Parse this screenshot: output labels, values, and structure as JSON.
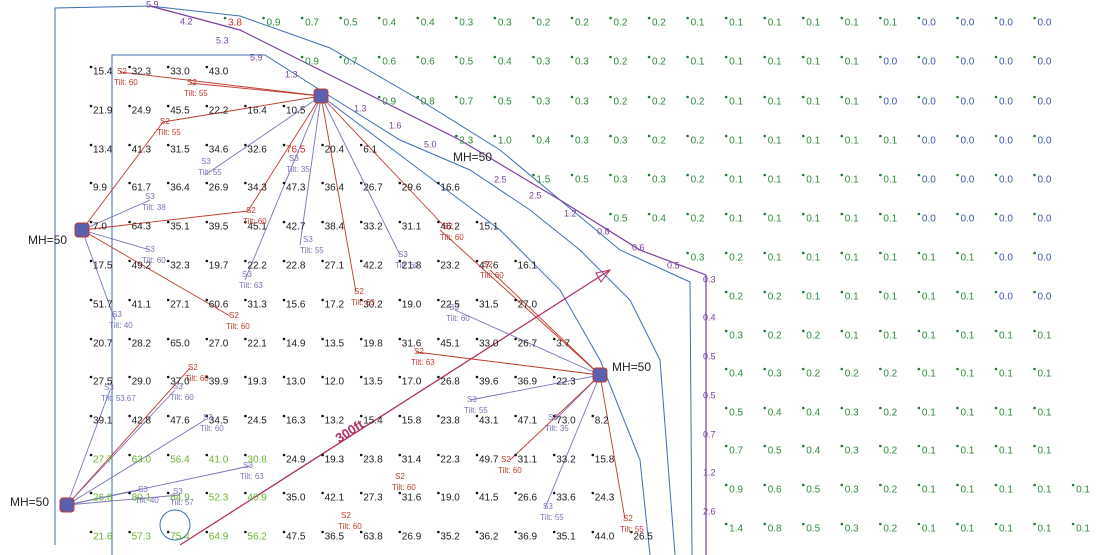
{
  "grid_a": {
    "color": "#1a1a1a",
    "rows": [
      [
        "15.4",
        "32.3",
        "33.0",
        "43.0"
      ],
      [
        "21.9",
        "24.9",
        "45.5",
        "22.2",
        "16.4",
        "10.5"
      ],
      [
        "13.4",
        "41.3",
        "31.5",
        "34.6",
        "32.6",
        "76.5",
        "20.4",
        "6.1"
      ],
      [
        "9.9",
        "61.7",
        "36.4",
        "26.9",
        "34.3",
        "47.3",
        "36.4",
        "26.7",
        "29.6",
        "16.6"
      ],
      [
        "7.0",
        "64.3",
        "35.1",
        "39.5",
        "45.1",
        "42.7",
        "38.4",
        "33.2",
        "31.1",
        "46.2",
        "15.1"
      ],
      [
        "17.5",
        "49.2",
        "32.3",
        "19.7",
        "22.2",
        "22.8",
        "27.1",
        "42.2",
        "21.8",
        "23.2",
        "47.6",
        "16.1"
      ],
      [
        "51.7",
        "41.1",
        "27.1",
        "60.6",
        "31.3",
        "15.6",
        "17.2",
        "30.2",
        "19.0",
        "22.5",
        "31.5",
        "27.0"
      ],
      [
        "20.7",
        "28.2",
        "65.0",
        "27.0",
        "22.1",
        "14.9",
        "13.5",
        "19.8",
        "31.6",
        "45.1",
        "33.0",
        "26.7",
        "3.7"
      ],
      [
        "27.5",
        "29.0",
        "37.0",
        "39.9",
        "19.3",
        "13.0",
        "12.0",
        "13.5",
        "17.0",
        "26.8",
        "39.6",
        "36.9",
        "22.3"
      ],
      [
        "39.1",
        "42.8",
        "47.6",
        "34.5",
        "24.5",
        "16.3",
        "13.2",
        "15.4",
        "15.8",
        "23.8",
        "43.1",
        "47.1",
        "73.0",
        "8.2"
      ],
      [
        "27.7",
        "63.0",
        "56.4",
        "41.0",
        "30.8",
        "24.9",
        "19.3",
        "23.8",
        "31.4",
        "22.3",
        "49.7",
        "31.1",
        "33.2",
        "15.8"
      ],
      [
        "26.8",
        "80.1",
        "64.9",
        "52.3",
        "40.9",
        "35.0",
        "42.1",
        "27.3",
        "31.6",
        "19.0",
        "41.5",
        "26.6",
        "33.6",
        "24.3"
      ],
      [
        "21.6",
        "57.3",
        "75.4",
        "64.9",
        "56.2",
        "47.5",
        "36.5",
        "63.8",
        "26.9",
        "35.2",
        "36.2",
        "36.9",
        "35.1",
        "44.0",
        "26.5"
      ]
    ],
    "colored_cells": [
      {
        "row": 2,
        "cols": [
          5
        ],
        "color": "#d0302a"
      },
      {
        "row": 10,
        "cols": [
          0,
          1,
          2,
          3,
          4
        ],
        "color": "#6ab42d"
      },
      {
        "row": 11,
        "cols": [
          0,
          1,
          2,
          3,
          4
        ],
        "color": "#6ab42d"
      },
      {
        "row": 12,
        "cols": [
          0,
          1,
          2,
          3,
          4
        ],
        "color": "#6ab42d"
      }
    ]
  },
  "grid_b": {
    "color": "#2e8b3a",
    "zero_color": "#3d55a8",
    "rows": [
      [
        "3.8",
        "0.9",
        "0.7",
        "0.5",
        "0.4",
        "0.4",
        "0.3",
        "0.3",
        "0.2",
        "0.2",
        "0.2",
        "0.2",
        "0.1",
        "0.1",
        "0.1",
        "0.1",
        "0.1",
        "0.1",
        "0.0",
        "0.0",
        "0.0",
        "0.0"
      ],
      [
        null,
        null,
        "0.9",
        "0.7",
        "0.6",
        "0.6",
        "0.5",
        "0.4",
        "0.3",
        "0.3",
        "0.2",
        "0.2",
        "0.1",
        "0.1",
        "0.1",
        "0.1",
        "0.1",
        "0.0",
        "0.0",
        "0.0",
        "0.0",
        "0.0"
      ],
      [
        null,
        null,
        null,
        null,
        "0.9",
        "0.8",
        "0.7",
        "0.5",
        "0.3",
        "0.3",
        "0.2",
        "0.2",
        "0.2",
        "0.1",
        "0.1",
        "0.1",
        "0.1",
        "0.0",
        "0.0",
        "0.0",
        "0.0",
        "0.0"
      ],
      [
        null,
        null,
        null,
        null,
        null,
        null,
        "2.3",
        "1.0",
        "0.4",
        "0.3",
        "0.3",
        "0.2",
        "0.2",
        "0.1",
        "0.1",
        "0.1",
        "0.1",
        "0.1",
        "0.0",
        "0.0",
        "0.0",
        "0.0"
      ],
      [
        null,
        null,
        null,
        null,
        null,
        null,
        null,
        null,
        "1.5",
        "0.5",
        "0.3",
        "0.3",
        "0.2",
        "0.1",
        "0.1",
        "0.1",
        "0.1",
        "0.1",
        "0.0",
        "0.0",
        "0.0",
        "0.0"
      ],
      [
        null,
        null,
        null,
        null,
        null,
        null,
        null,
        null,
        null,
        null,
        "0.5",
        "0.4",
        "0.2",
        "0.1",
        "0.1",
        "0.1",
        "0.1",
        "0.1",
        "0.0",
        "0.0",
        "0.0",
        "0.0"
      ],
      [
        null,
        null,
        null,
        null,
        null,
        null,
        null,
        null,
        null,
        null,
        null,
        null,
        "0.3",
        "0.2",
        "0.1",
        "0.1",
        "0.1",
        "0.1",
        "0.1",
        "0.1",
        "0.0",
        "0.0"
      ],
      [
        null,
        null,
        null,
        null,
        null,
        null,
        null,
        null,
        null,
        null,
        null,
        null,
        null,
        "0.2",
        "0.2",
        "0.1",
        "0.1",
        "0.1",
        "0.1",
        "0.1",
        "0.0",
        "0.0"
      ],
      [
        null,
        null,
        null,
        null,
        null,
        null,
        null,
        null,
        null,
        null,
        null,
        null,
        null,
        "0.3",
        "0.2",
        "0.2",
        "0.1",
        "0.1",
        "0.1",
        "0.1",
        "0.1",
        "0.1"
      ],
      [
        null,
        null,
        null,
        null,
        null,
        null,
        null,
        null,
        null,
        null,
        null,
        null,
        null,
        "0.4",
        "0.3",
        "0.2",
        "0.2",
        "0.2",
        "0.1",
        "0.1",
        "0.1",
        "0.1"
      ],
      [
        null,
        null,
        null,
        null,
        null,
        null,
        null,
        null,
        null,
        null,
        null,
        null,
        null,
        "0.5",
        "0.4",
        "0.4",
        "0.3",
        "0.2",
        "0.1",
        "0.1",
        "0.1",
        "0.1"
      ],
      [
        null,
        null,
        null,
        null,
        null,
        null,
        null,
        null,
        null,
        null,
        null,
        null,
        null,
        "0.7",
        "0.5",
        "0.4",
        "0.3",
        "0.2",
        "0.1",
        "0.1",
        "0.1",
        "0.1"
      ],
      [
        null,
        null,
        null,
        null,
        null,
        null,
        null,
        null,
        null,
        null,
        null,
        null,
        null,
        "0.9",
        "0.6",
        "0.5",
        "0.3",
        "0.2",
        "0.1",
        "0.1",
        "0.1",
        "0.1",
        "0.1"
      ],
      [
        null,
        null,
        null,
        null,
        null,
        null,
        null,
        null,
        null,
        null,
        null,
        null,
        null,
        "1.4",
        "0.8",
        "0.5",
        "0.3",
        "0.2",
        "0.1",
        "0.1",
        "0.1",
        "0.1",
        "0.1"
      ]
    ],
    "colored_cells": [
      {
        "row": 0,
        "cols": [
          0
        ],
        "color": "#d0302a"
      }
    ]
  },
  "perimeter": {
    "color": "#7a3fa0",
    "values": [
      "5.9",
      "4.2",
      "5.3",
      "5.9",
      "1.3",
      "1.3",
      "1.6",
      "5.0",
      "2.5",
      "2.5",
      "1.2",
      "0.8",
      "0.6",
      "0.5",
      "0.3",
      "0.4",
      "0.5",
      "0.5",
      "0.7",
      "1.2",
      "2.6"
    ]
  },
  "mounting_labels": [
    "MH=50",
    "MH=50",
    "MH=50",
    "MH=50"
  ],
  "dimension": "300ft",
  "aims": [
    {
      "model": "S2",
      "tilt": "Tilt: 60"
    },
    {
      "model": "S2",
      "tilt": "Tilt: 55"
    },
    {
      "model": "S2",
      "tilt": "Tilt: 55"
    },
    {
      "model": "S3",
      "tilt": "Tilt: 55"
    },
    {
      "model": "S3",
      "tilt": "Tilt: 35"
    },
    {
      "model": "S3",
      "tilt": "Tilt: 38"
    },
    {
      "model": "S2",
      "tilt": "Tilt: 60"
    },
    {
      "model": "S3",
      "tilt": "Tilt: 60"
    },
    {
      "model": "S3",
      "tilt": "Tilt: 55"
    },
    {
      "model": "S3",
      "tilt": "Tilt: 60"
    },
    {
      "model": "S2",
      "tilt": "Tilt: 60"
    },
    {
      "model": "S2",
      "tilt": "Tilt: 60"
    },
    {
      "model": "S3",
      "tilt": "Tilt: 63"
    },
    {
      "model": "S2",
      "tilt": "Tilt: 63"
    },
    {
      "model": "S3",
      "tilt": "Tilt: 60"
    },
    {
      "model": "S3",
      "tilt": "Tilt: 40"
    },
    {
      "model": "S2",
      "tilt": "Tilt: 60"
    },
    {
      "model": "S2",
      "tilt": "Tilt: 63"
    },
    {
      "model": "S2",
      "tilt": "Tilt: 60"
    },
    {
      "model": "S3",
      "tilt": "Tilt: 53.67"
    },
    {
      "model": "S3",
      "tilt": "Tilt: 60"
    },
    {
      "model": "S3",
      "tilt": "Tilt: 60"
    },
    {
      "model": "S3",
      "tilt": "Tilt: 55"
    },
    {
      "model": "S3",
      "tilt": "Tilt: 35"
    },
    {
      "model": "S3",
      "tilt": "Tilt: 63"
    },
    {
      "model": "S2",
      "tilt": "Tilt: 60"
    },
    {
      "model": "S2",
      "tilt": "Tilt: 60"
    },
    {
      "model": "S3",
      "tilt": "Tilt: 40"
    },
    {
      "model": "S3",
      "tilt": "Tilt: 57"
    },
    {
      "model": "S3",
      "tilt": "Tilt: 55"
    },
    {
      "model": "S2",
      "tilt": "Tilt: 55"
    },
    {
      "model": "S2",
      "tilt": "Tilt: 60"
    }
  ],
  "aim_colors": {
    "S2": "#c0392b",
    "S3": "#7b73b8"
  }
}
